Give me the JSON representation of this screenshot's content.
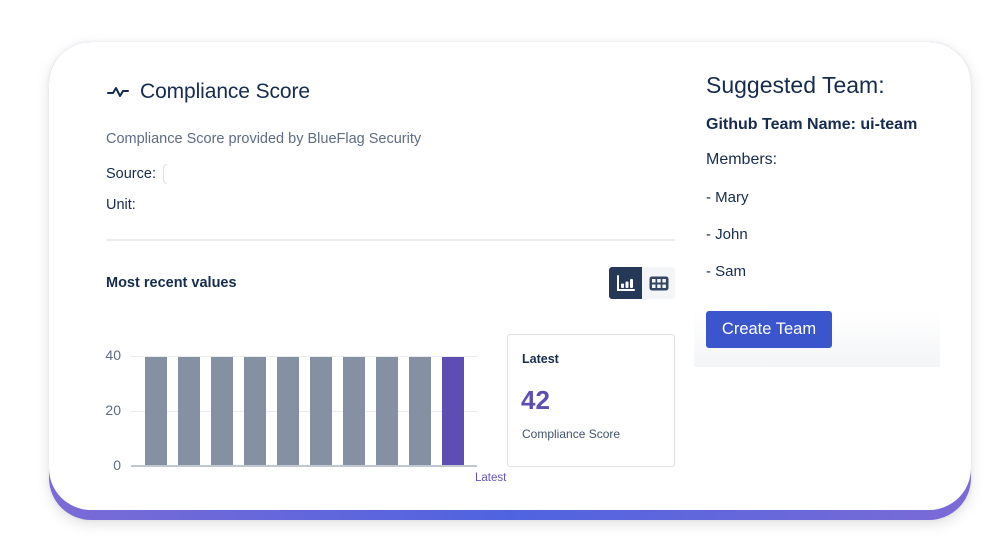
{
  "widget": {
    "title": "Compliance Score",
    "description": "Compliance Score provided by BlueFlag Security",
    "source_label": "Source:",
    "source_value": "",
    "unit_label": "Unit:",
    "unit_value": "",
    "section_title": "Most recent values",
    "view_toggle": {
      "options": [
        {
          "icon": "bar-chart-icon",
          "active": true
        },
        {
          "icon": "table-icon",
          "active": false
        }
      ]
    },
    "latest": {
      "title": "Latest",
      "value": "42",
      "caption": "Compliance Score"
    }
  },
  "chart_data": {
    "type": "bar",
    "categories": [
      "",
      "",
      "",
      "",
      "",
      "",
      "",
      "",
      "",
      "Latest"
    ],
    "values": [
      42,
      42,
      42,
      42,
      42,
      42,
      42,
      42,
      42,
      42
    ],
    "title": "Most recent values",
    "xlabel": "",
    "ylabel": "",
    "yticks": [
      "0",
      "20",
      "40"
    ],
    "ylim": [
      0,
      45
    ],
    "grid": true,
    "colors": {
      "default": "#8590a2",
      "latest": "#5e4db2"
    }
  },
  "team": {
    "heading": "Suggested Team:",
    "github_team_name": "Github Team Name: ui-team",
    "members_label": "Members:",
    "members": [
      "- Mary",
      "- John",
      "- Sam"
    ],
    "create_button": "Create Team"
  },
  "colors": {
    "accent": "#5e4db2",
    "primary_button": "#3b55cc",
    "text": "#172b4d",
    "muted": "#5e6c84"
  }
}
